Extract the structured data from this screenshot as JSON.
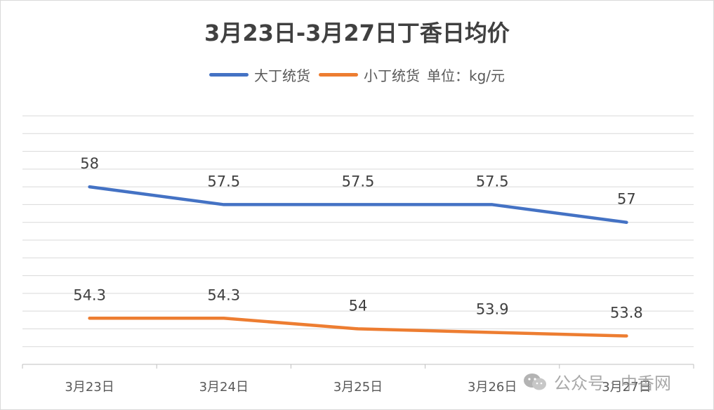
{
  "chart_data": {
    "type": "line",
    "title": "3月23日-3月27日丁香日均价",
    "categories": [
      "3月23日",
      "3月24日",
      "3月25日",
      "3月26日",
      "3月27日"
    ],
    "series": [
      {
        "name": "大丁统货",
        "values": [
          58,
          57.5,
          57.5,
          57.5,
          57
        ],
        "color": "#4472c4"
      },
      {
        "name": "小丁统货",
        "values": [
          54.3,
          54.3,
          54,
          53.9,
          53.8
        ],
        "color": "#ed7d31"
      }
    ],
    "data_labels": {
      "大丁统货": [
        "58",
        "57.5",
        "57.5",
        "57.5",
        "57"
      ],
      "小丁统货": [
        "54.3",
        "54.3",
        "54",
        "53.9",
        "53.8"
      ]
    },
    "unit_note": "单位：kg/元",
    "ylim": [
      53,
      60
    ],
    "gridlines": true,
    "legend_position": "top"
  },
  "watermark": {
    "text": "公众号 · 中香网",
    "icon": "wechat-icon"
  }
}
